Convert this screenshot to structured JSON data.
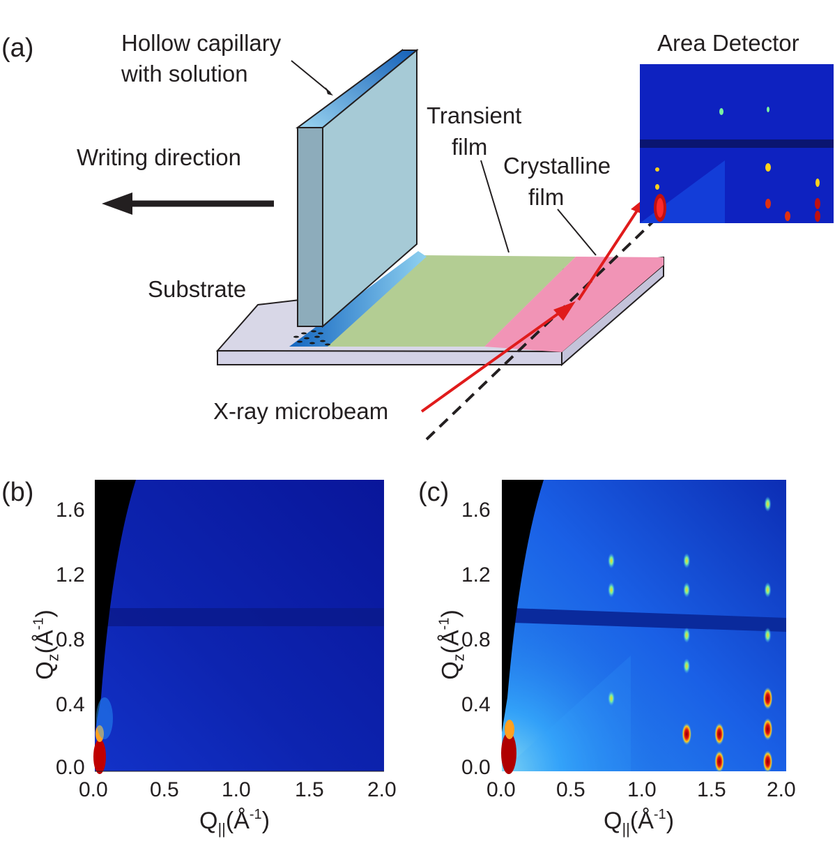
{
  "figure": {
    "panels": {
      "a": {
        "letter": "(a)",
        "labels": {
          "capillary": [
            "Hollow capillary",
            "with solution"
          ],
          "writing": "Writing direction",
          "transient": [
            "Transient",
            "film"
          ],
          "crystalline": [
            "Crystalline",
            "film"
          ],
          "substrate": "Substrate",
          "xray": "X-ray microbeam",
          "detector": "Area Detector"
        }
      },
      "b": {
        "letter": "(b)"
      },
      "c": {
        "letter": "(c)"
      }
    },
    "axes": {
      "x_title_main": "Q",
      "x_title_sub": "||",
      "x_title_unit": "(Å",
      "x_title_exp": "-1",
      "x_title_close": ")",
      "y_title_main": "Q",
      "y_title_sub": "z",
      "y_title_unit": "(Å",
      "y_title_exp": "-1",
      "y_title_close": ")",
      "x_ticks": [
        "0.0",
        "0.5",
        "1.0",
        "1.5",
        "2.0"
      ],
      "y_ticks": [
        "0.0",
        "0.4",
        "0.8",
        "1.2",
        "1.6"
      ]
    }
  },
  "chart_data": [
    {
      "type": "heatmap",
      "panel": "b",
      "xlabel": "Q|| (Å-1)",
      "ylabel": "Qz (Å-1)",
      "xlim": [
        0.0,
        2.0
      ],
      "ylim": [
        0.0,
        1.8
      ],
      "x_ticks": [
        0.0,
        0.5,
        1.0,
        1.5,
        2.0
      ],
      "y_ticks": [
        0.0,
        0.4,
        0.8,
        1.2,
        1.6
      ],
      "peaks": [],
      "colors": {
        "background": "#0a1a9a",
        "high": "#b00000"
      }
    },
    {
      "type": "heatmap",
      "panel": "c",
      "xlabel": "Q|| (Å-1)",
      "ylabel": "Qz (Å-1)",
      "xlim": [
        0.0,
        2.0
      ],
      "ylim": [
        0.0,
        1.8
      ],
      "x_ticks": [
        0.0,
        0.5,
        1.0,
        1.5,
        2.0
      ],
      "y_ticks": [
        0.0,
        0.4,
        0.8,
        1.2,
        1.6
      ],
      "peaks": [
        {
          "x": 0.77,
          "y": 1.3
        },
        {
          "x": 0.77,
          "y": 1.12
        },
        {
          "x": 0.77,
          "y": 0.45
        },
        {
          "x": 1.3,
          "y": 0.65
        },
        {
          "x": 1.3,
          "y": 0.23
        },
        {
          "x": 1.3,
          "y": 1.3
        },
        {
          "x": 1.3,
          "y": 1.12
        },
        {
          "x": 1.3,
          "y": 0.84
        },
        {
          "x": 1.53,
          "y": 0.23
        },
        {
          "x": 1.53,
          "y": 0.06
        },
        {
          "x": 1.87,
          "y": 0.45
        },
        {
          "x": 1.87,
          "y": 0.26
        },
        {
          "x": 1.87,
          "y": 0.06
        },
        {
          "x": 1.87,
          "y": 1.12
        },
        {
          "x": 1.87,
          "y": 0.84
        },
        {
          "x": 1.87,
          "y": 1.65
        }
      ],
      "colors": {
        "background": "#1550e0",
        "peak": "#ffd21a",
        "high": "#b00000"
      }
    }
  ]
}
